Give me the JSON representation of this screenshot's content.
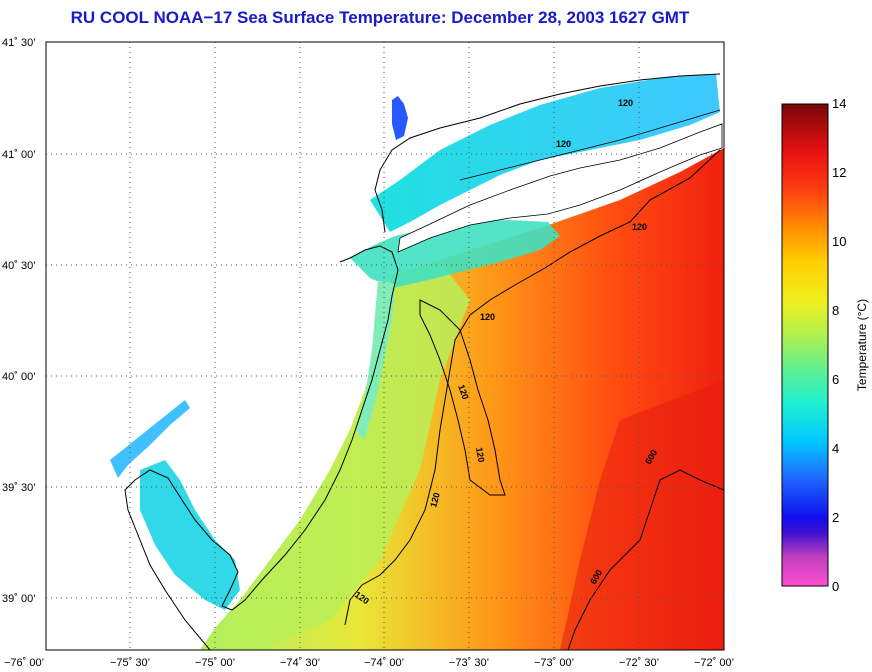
{
  "title": "RU COOL  NOAA−17  Sea Surface Temperature:  December 28, 2003 1627 GMT",
  "colors": {
    "title": "#1a1ac8",
    "land": "#ffffff",
    "coast": "#000000",
    "grid": "#555555"
  },
  "map": {
    "lon_range": [
      -76.0,
      -72.0
    ],
    "lat_range": [
      38.75,
      41.5
    ],
    "lat_ticks": [
      {
        "value": 41.5,
        "label": "41˚ 30’"
      },
      {
        "value": 41.0,
        "label": "41˚ 00’"
      },
      {
        "value": 40.5,
        "label": "40˚ 30’"
      },
      {
        "value": 40.0,
        "label": "40˚ 00’"
      },
      {
        "value": 39.5,
        "label": "39˚ 30’"
      },
      {
        "value": 39.0,
        "label": "39˚ 00’"
      }
    ],
    "lon_ticks": [
      {
        "value": -76.0,
        "label": "−76˚ 00’"
      },
      {
        "value": -75.5,
        "label": "−75˚ 30’"
      },
      {
        "value": -75.0,
        "label": "−75˚ 00’"
      },
      {
        "value": -74.5,
        "label": "−74˚ 30’"
      },
      {
        "value": -74.0,
        "label": "−74˚ 00’"
      },
      {
        "value": -73.5,
        "label": "−73˚ 30’"
      },
      {
        "value": -73.0,
        "label": "−73˚ 00’"
      },
      {
        "value": -72.5,
        "label": "−72˚ 30’"
      },
      {
        "value": -72.0,
        "label": "−72˚ 00’"
      }
    ],
    "contour_labels": [
      "120",
      "120",
      "120",
      "120",
      "120",
      "120",
      "120",
      "120",
      "600",
      "600"
    ]
  },
  "colorbar": {
    "label": "Temperature (°C)",
    "min": 0,
    "max": 14,
    "ticks": [
      "0",
      "2",
      "4",
      "6",
      "8",
      "10",
      "12",
      "14"
    ]
  }
}
